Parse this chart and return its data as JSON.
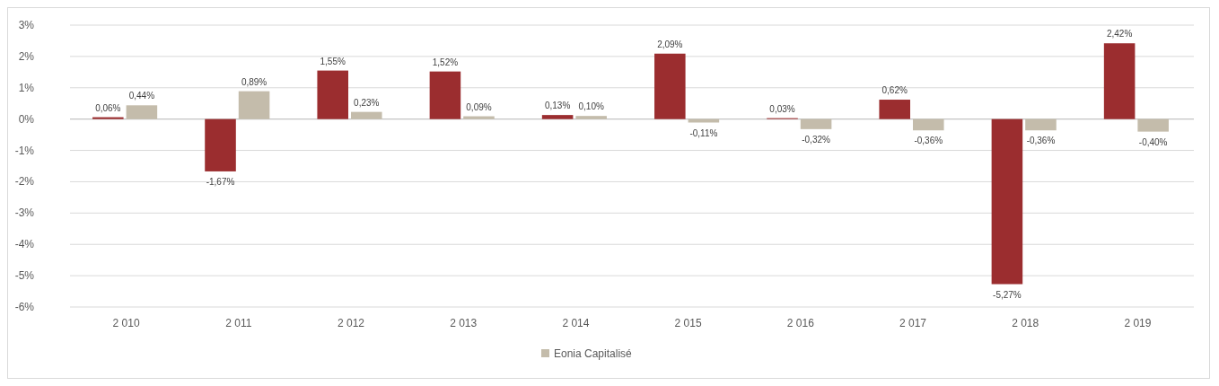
{
  "chart_data": {
    "type": "bar",
    "categories": [
      "2 010",
      "2 011",
      "2 012",
      "2 013",
      "2 014",
      "2 015",
      "2 016",
      "2 017",
      "2 018",
      "2 019"
    ],
    "series": [
      {
        "color": "#9b2d2f",
        "values": [
          0.06,
          -1.67,
          1.55,
          1.52,
          0.13,
          2.09,
          0.03,
          0.62,
          -5.27,
          2.42
        ],
        "value_labels": [
          "0,06%",
          "-1,67%",
          "1,55%",
          "1,52%",
          "0,13%",
          "2,09%",
          "0,03%",
          "0,62%",
          "-5,27%",
          "2,42%"
        ]
      },
      {
        "name": "Eonia Capitalisé",
        "color": "#c4bcab",
        "values": [
          0.44,
          0.89,
          0.23,
          0.09,
          0.1,
          -0.11,
          -0.32,
          -0.36,
          -0.36,
          -0.4
        ],
        "value_labels": [
          "0,44%",
          "0,89%",
          "0,23%",
          "0,09%",
          "0,10%",
          "-0,11%",
          "-0,32%",
          "-0,36%",
          "-0,36%",
          "-0,40%"
        ]
      }
    ],
    "ylim": [
      -6,
      3
    ],
    "yticks": [
      {
        "value": 3,
        "label": "3%"
      },
      {
        "value": 2,
        "label": "2%"
      },
      {
        "value": 1,
        "label": "1%"
      },
      {
        "value": 0,
        "label": "0%"
      },
      {
        "value": -1,
        "label": "-1%"
      },
      {
        "value": -2,
        "label": "-2%"
      },
      {
        "value": -3,
        "label": "-3%"
      },
      {
        "value": -4,
        "label": "-4%"
      },
      {
        "value": -5,
        "label": "-5%"
      },
      {
        "value": -6,
        "label": "-6%"
      }
    ],
    "grid": "y",
    "legend": "bottom"
  }
}
